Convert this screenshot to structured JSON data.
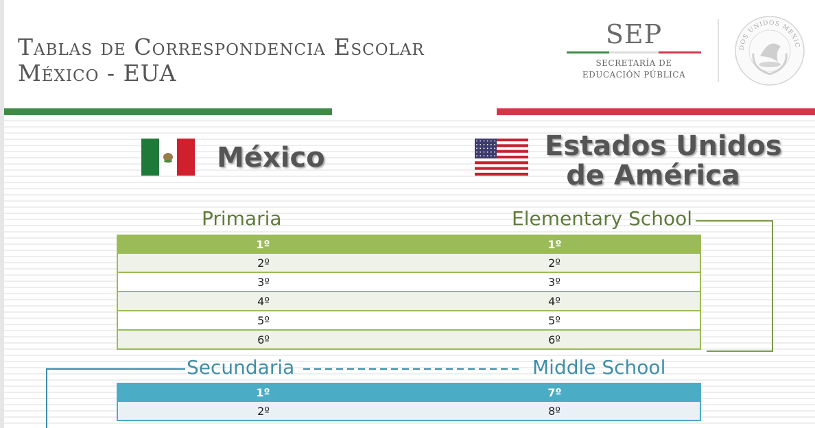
{
  "header": {
    "title_line1": "Tablas de Correspondencia Escolar",
    "title_line2": "México - EUA"
  },
  "agency": {
    "abbr": "SEP",
    "name_line1": "SECRETARÍA DE",
    "name_line2": "EDUCACIÓN PÚBLICA",
    "seal_text": "ESTADOS UNIDOS MEXICANOS"
  },
  "countries": {
    "mexico": "México",
    "usa_line1": "Estados Unidos",
    "usa_line2": "de América"
  },
  "primary": {
    "label_mx": "Primaria",
    "label_us": "Elementary School",
    "header": {
      "mx": "1º",
      "us": "1º"
    },
    "rows": [
      {
        "mx": "2º",
        "us": "2º"
      },
      {
        "mx": "3º",
        "us": "3º"
      },
      {
        "mx": "4º",
        "us": "4º"
      },
      {
        "mx": "5º",
        "us": "5º"
      },
      {
        "mx": "6º",
        "us": "6º"
      }
    ]
  },
  "secondary": {
    "label_mx": "Secundaria",
    "label_us": "Middle School",
    "header": {
      "mx": "1º",
      "us": "7º"
    },
    "rows": [
      {
        "mx": "2º",
        "us": "8º"
      }
    ]
  },
  "colors": {
    "primary_accent": "#9bbb59",
    "primary_row_alt": "#eef2e8",
    "primary_label": "#5f7a3a",
    "secondary_accent": "#4bacc6",
    "secondary_row": "#e9f1f5",
    "secondary_label": "#3f8fa6",
    "mx_green": "#3d8b47",
    "mx_red": "#d0384a",
    "text_gray": "#555555"
  }
}
